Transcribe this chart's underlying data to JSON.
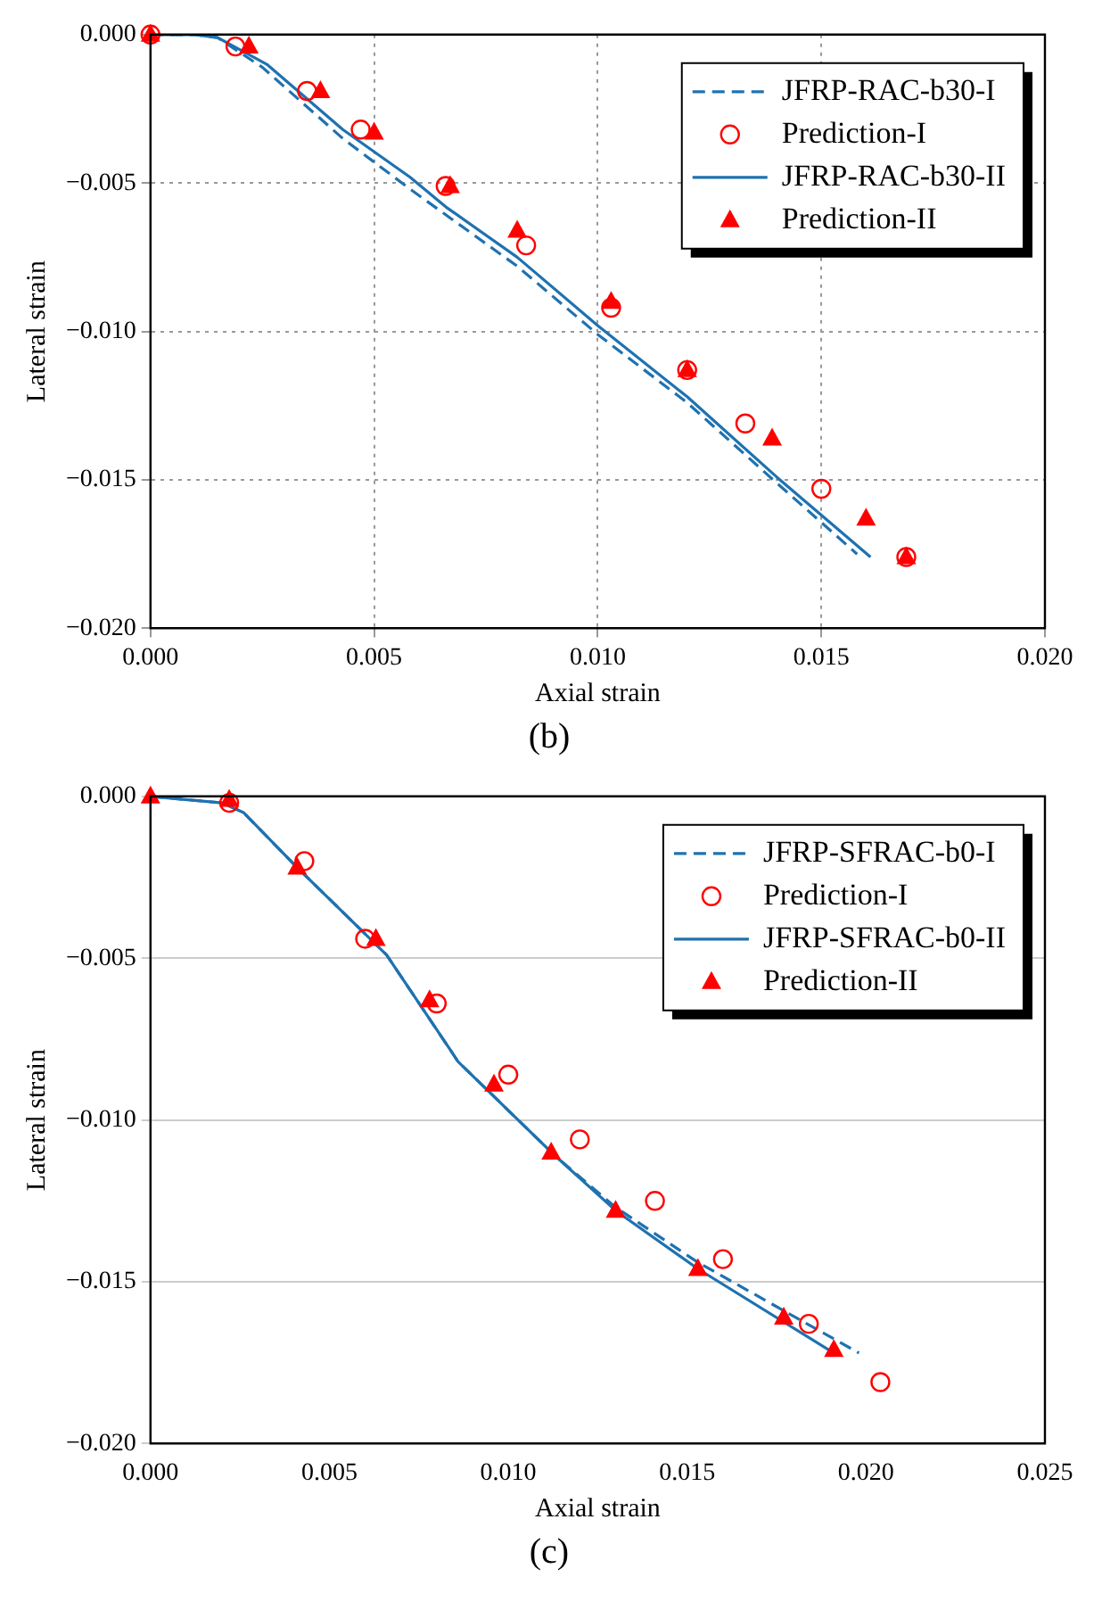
{
  "chart_data": [
    {
      "type": "line",
      "xlabel": "Axial strain",
      "ylabel": "Lateral strain",
      "annotations": [
        "(b)"
      ],
      "xlim": [
        0,
        0.02
      ],
      "ylim": [
        -0.02,
        0
      ],
      "xticks": [
        {
          "value": 0,
          "label": "0.000"
        },
        {
          "value": 0.005,
          "label": "0.005"
        },
        {
          "value": 0.01,
          "label": "0.010"
        },
        {
          "value": 0.015,
          "label": "0.015"
        },
        {
          "value": 0.02,
          "label": "0.020"
        }
      ],
      "yticks": [
        {
          "value": 0,
          "label": "0.000"
        },
        {
          "value": -0.005,
          "label": "−0.005"
        },
        {
          "value": -0.01,
          "label": "−0.010"
        },
        {
          "value": -0.015,
          "label": "−0.015"
        },
        {
          "value": -0.02,
          "label": "−0.020"
        }
      ],
      "grid": true,
      "legend": "top right",
      "series": [
        {
          "name": "JFRP-RAC-b30-I",
          "type": "line",
          "line_style": "dashed",
          "marker": "none",
          "color": "#1f72b0",
          "x": [
            0,
            0.001,
            0.0015,
            0.0025,
            0.0043,
            0.0058,
            0.0082,
            0.01,
            0.012,
            0.014,
            0.0158
          ],
          "values": [
            0,
            0,
            -0.0001,
            -0.0011,
            -0.0035,
            -0.0052,
            -0.0078,
            -0.0101,
            -0.0124,
            -0.0151,
            -0.0175
          ]
        },
        {
          "name": "Prediction-I",
          "type": "scatter",
          "marker": "circle",
          "color": "#ff0000",
          "x": [
            0,
            0.0019,
            0.0035,
            0.0047,
            0.0066,
            0.0084,
            0.0103,
            0.012,
            0.0133,
            0.015,
            0.0169
          ],
          "values": [
            0,
            -0.0004,
            -0.0019,
            -0.0032,
            -0.0051,
            -0.0071,
            -0.0092,
            -0.0113,
            -0.0131,
            -0.0153,
            -0.0176
          ]
        },
        {
          "name": "JFRP-RAC-b30-II",
          "type": "line",
          "line_style": "solid",
          "marker": "none",
          "color": "#1f72b0",
          "x": [
            0,
            0.001,
            0.0015,
            0.0026,
            0.0043,
            0.0058,
            0.0066,
            0.0082,
            0.01,
            0.012,
            0.014,
            0.0161
          ],
          "values": [
            0,
            0,
            -0.0001,
            -0.001,
            -0.0032,
            -0.0048,
            -0.0058,
            -0.0075,
            -0.0098,
            -0.0122,
            -0.0149,
            -0.0176
          ]
        },
        {
          "name": "Prediction-II",
          "type": "scatter",
          "marker": "triangle",
          "color": "#ff0000",
          "x": [
            0,
            0.0022,
            0.0038,
            0.005,
            0.0067,
            0.0082,
            0.0103,
            0.012,
            0.0139,
            0.016,
            0.0169
          ],
          "values": [
            0,
            -0.0004,
            -0.0019,
            -0.0033,
            -0.0051,
            -0.0066,
            -0.009,
            -0.0113,
            -0.0136,
            -0.0163,
            -0.0176
          ]
        }
      ]
    },
    {
      "type": "line",
      "xlabel": "Axial strain",
      "ylabel": "Lateral strain",
      "annotations": [
        "(c)"
      ],
      "xlim": [
        0,
        0.025
      ],
      "ylim": [
        -0.02,
        0
      ],
      "xticks": [
        {
          "value": 0,
          "label": "0.000"
        },
        {
          "value": 0.005,
          "label": "0.005"
        },
        {
          "value": 0.01,
          "label": "0.010"
        },
        {
          "value": 0.015,
          "label": "0.015"
        },
        {
          "value": 0.02,
          "label": "0.020"
        },
        {
          "value": 0.025,
          "label": "0.025"
        }
      ],
      "yticks": [
        {
          "value": 0,
          "label": "0.000"
        },
        {
          "value": -0.005,
          "label": "−0.005"
        },
        {
          "value": -0.01,
          "label": "−0.010"
        },
        {
          "value": -0.015,
          "label": "−0.015"
        },
        {
          "value": -0.02,
          "label": "−0.020"
        }
      ],
      "grid": "y",
      "legend": "top right",
      "series": [
        {
          "name": "JFRP-SFRAC-b0-I",
          "type": "line",
          "line_style": "dashed",
          "marker": "none",
          "color": "#1f72b0",
          "x": [
            0,
            0.002,
            0.0026,
            0.0041,
            0.0066,
            0.0086,
            0.0113,
            0.013,
            0.0153,
            0.0198
          ],
          "values": [
            0,
            -0.0002,
            -0.0005,
            -0.0022,
            -0.0049,
            -0.0082,
            -0.0111,
            -0.0127,
            -0.0144,
            -0.0172
          ]
        },
        {
          "name": "Prediction-I",
          "type": "scatter",
          "marker": "circle",
          "color": "#ff0000",
          "x": [
            0.0022,
            0.0043,
            0.006,
            0.008,
            0.01,
            0.012,
            0.0141,
            0.016,
            0.0184,
            0.0204
          ],
          "values": [
            -0.0002,
            -0.002,
            -0.0044,
            -0.0064,
            -0.0086,
            -0.0106,
            -0.0125,
            -0.0143,
            -0.0163,
            -0.0181
          ]
        },
        {
          "name": "JFRP-SFRAC-b0-II",
          "type": "line",
          "line_style": "solid",
          "marker": "none",
          "color": "#1f72b0",
          "x": [
            0,
            0.002,
            0.0026,
            0.0041,
            0.0066,
            0.0086,
            0.0113,
            0.013,
            0.0153,
            0.0191
          ],
          "values": [
            0,
            -0.0002,
            -0.0005,
            -0.0022,
            -0.0049,
            -0.0082,
            -0.0111,
            -0.0128,
            -0.0146,
            -0.0172
          ]
        },
        {
          "name": "Prediction-II",
          "type": "scatter",
          "marker": "triangle",
          "color": "#ff0000",
          "x": [
            0,
            0.0022,
            0.0041,
            0.0063,
            0.0078,
            0.0096,
            0.0112,
            0.013,
            0.0153,
            0.0177,
            0.0191
          ],
          "values": [
            0,
            -0.0001,
            -0.0022,
            -0.0044,
            -0.0063,
            -0.0089,
            -0.011,
            -0.0128,
            -0.0146,
            -0.0161,
            -0.0171
          ]
        }
      ]
    }
  ]
}
